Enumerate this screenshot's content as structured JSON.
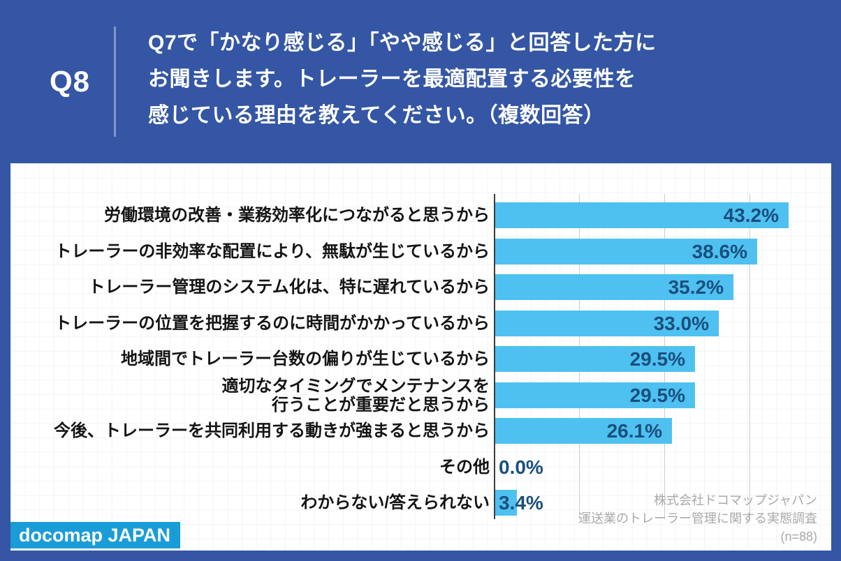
{
  "header": {
    "badge": "Q8",
    "question": "Q7で「かなり感じる」「やや感じる」と回答した方に\nお聞きします。トレーラーを最適配置する必要性を\n感じている理由を教えてください。（複数回答）"
  },
  "colors": {
    "background_blue": "#3456A4",
    "panel_white": "#ffffff",
    "bar_blue": "#4EC1F1",
    "value_navy": "#1A4F7D",
    "logo_blue": "#199CD8",
    "divider_blue": "#8497C9",
    "gridline_gray": "#c9cdd2",
    "source_gray": "#a9a9a9"
  },
  "chart_data": {
    "type": "bar",
    "orientation": "horizontal",
    "title": "",
    "xlabel": "",
    "ylabel": "",
    "xlim": [
      0,
      50
    ],
    "gridlines_pct": [
      12.5,
      25,
      37.5
    ],
    "legend": "none",
    "categories": [
      "労働環境の改善・業務効率化につながると思うから",
      "トレーラーの非効率な配置により、無駄が生じているから",
      "トレーラー管理のシステム化は、特に遅れているから",
      "トレーラーの位置を把握するのに時間がかかっているから",
      "地域間でトレーラー台数の偏りが生じているから",
      "適切なタイミングでメンテナンスを\n行うことが重要だと思うから",
      "今後、トレーラーを共同利用する動きが強まると思うから",
      "その他",
      "わからない/答えられない"
    ],
    "values": [
      43.2,
      38.6,
      35.2,
      33.0,
      29.5,
      29.5,
      26.1,
      0.0,
      3.4
    ],
    "value_labels": [
      "43.2%",
      "38.6%",
      "35.2%",
      "33.0%",
      "29.5%",
      "29.5%",
      "26.1%",
      "0.0%",
      "3.4%"
    ]
  },
  "footer": {
    "logo_text": "docomap JAPAN",
    "source_lines": [
      "株式会社ドコマップジャパン",
      "運送業のトレーラー管理に関する実態調査",
      "(n=88)"
    ]
  }
}
